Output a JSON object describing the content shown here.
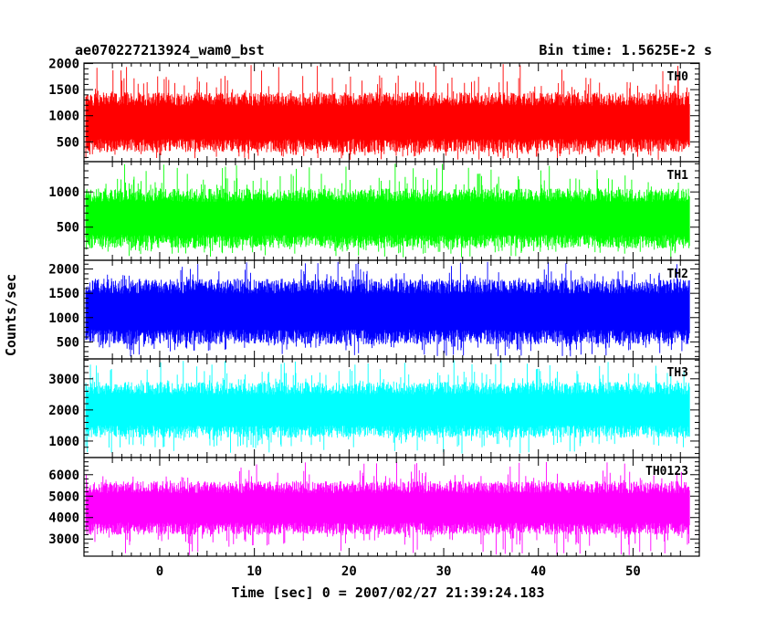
{
  "chart_data": {
    "type": "line",
    "title": "ae070227213924_wam0_bst",
    "subtitle": "Bin time: 1.5625E-2 s",
    "xlabel": "Time [sec] 0 = 2007/02/27 21:39:24.183",
    "ylabel": "Counts/sec",
    "xlim": [
      -8,
      57
    ],
    "x_ticks": [
      0,
      10,
      20,
      30,
      40,
      50
    ],
    "x_ticks_major": [
      0,
      10,
      20,
      30,
      40,
      50
    ],
    "x_data_range": [
      -7.8,
      56
    ],
    "grid": false,
    "panels": [
      {
        "name": "TH0",
        "color": "#ff0000",
        "ylim": [
          120,
          2010
        ],
        "y_ticks": [
          500,
          1000,
          1500,
          2000
        ],
        "y_tick_labels": [
          "500",
          "1000",
          "1500",
          "2000"
        ],
        "baseline_low": 300,
        "baseline_high": 1450,
        "spike_max": 2000,
        "dip_min": 150
      },
      {
        "name": "TH1",
        "color": "#00ff00",
        "ylim": [
          30,
          1430
        ],
        "y_ticks": [
          500,
          1000
        ],
        "y_tick_labels": [
          "500",
          "1000"
        ],
        "baseline_low": 200,
        "baseline_high": 1050,
        "spike_max": 1400,
        "dip_min": 60
      },
      {
        "name": "TH2",
        "color": "#0000ff",
        "ylim": [
          150,
          2180
        ],
        "y_ticks": [
          500,
          1000,
          1500,
          2000
        ],
        "y_tick_labels": [
          "500",
          "1000",
          "1500",
          "2000"
        ],
        "baseline_low": 450,
        "baseline_high": 1800,
        "spike_max": 2150,
        "dip_min": 200
      },
      {
        "name": "TH3",
        "color": "#00ffff",
        "ylim": [
          470,
          3640
        ],
        "y_ticks": [
          1000,
          2000,
          3000
        ],
        "y_tick_labels": [
          "1000",
          "2000",
          "3000"
        ],
        "baseline_low": 1100,
        "baseline_high": 2900,
        "spike_max": 3600,
        "dip_min": 550
      },
      {
        "name": "TH0123",
        "color": "#ff00ff",
        "ylim": [
          2200,
          6800
        ],
        "y_ticks": [
          3000,
          4000,
          5000,
          6000
        ],
        "y_tick_labels": [
          "3000",
          "4000",
          "5000",
          "6000"
        ],
        "baseline_low": 3200,
        "baseline_high": 5700,
        "spike_max": 6600,
        "dip_min": 2250
      }
    ]
  }
}
